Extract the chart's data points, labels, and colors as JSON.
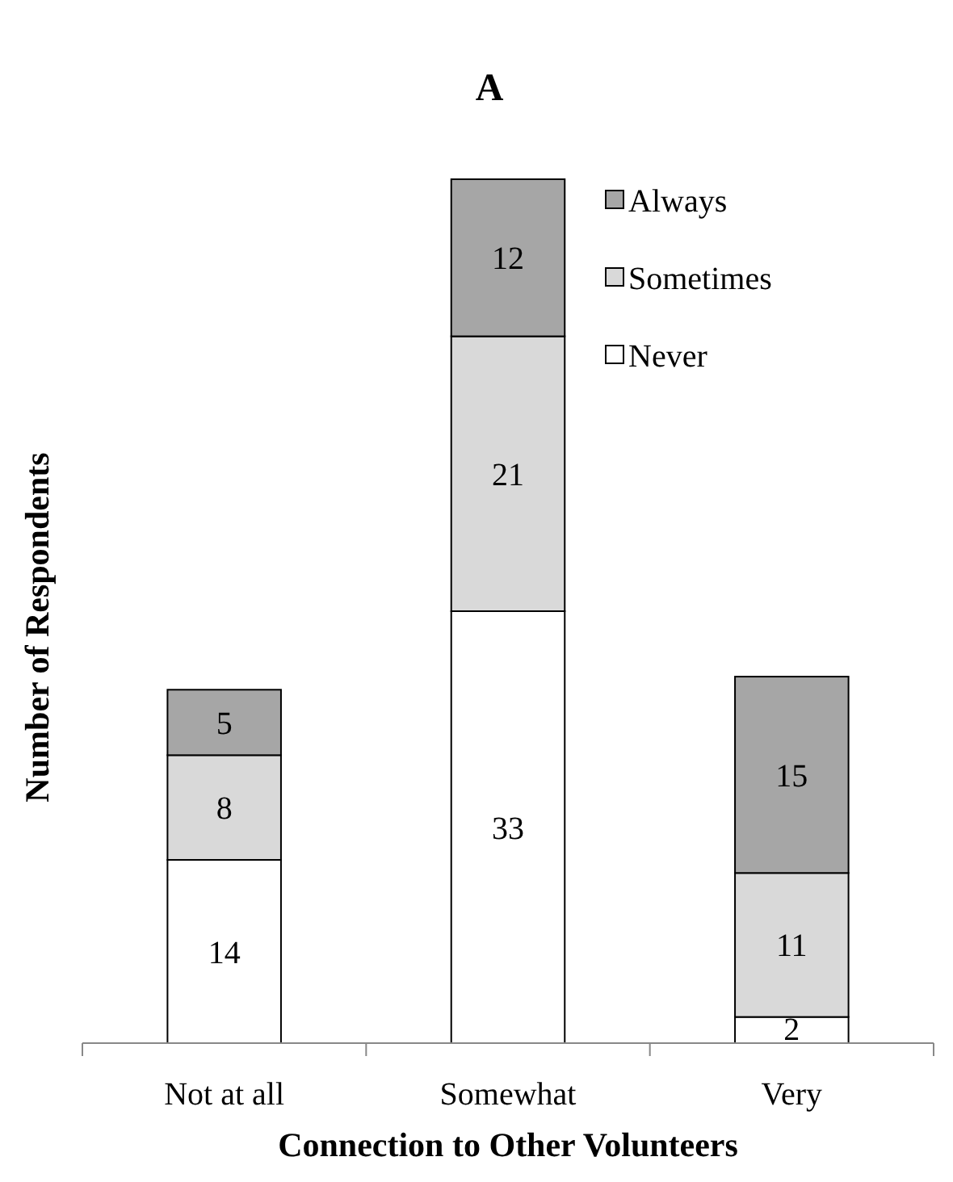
{
  "chart_data": {
    "type": "bar",
    "title": "A",
    "xlabel": "Connection to Other Volunteers",
    "ylabel": "Number of Respondents",
    "categories": [
      "Not at all",
      "Somewhat",
      "Very"
    ],
    "stacked": true,
    "data_labels": true,
    "legend": "top right",
    "series": [
      {
        "name": "Never",
        "color": "#ffffff",
        "values": [
          14,
          33,
          2
        ]
      },
      {
        "name": "Sometimes",
        "color": "#d9d9d9",
        "values": [
          8,
          21,
          11
        ]
      },
      {
        "name": "Always",
        "color": "#a6a6a6",
        "values": [
          5,
          12,
          15
        ]
      }
    ]
  }
}
